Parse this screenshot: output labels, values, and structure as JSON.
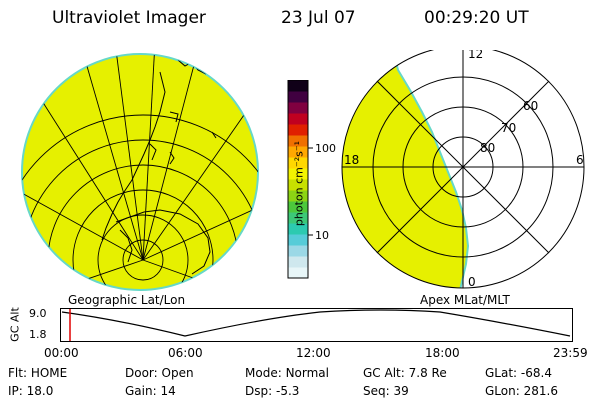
{
  "header": {
    "instrument": "Ultraviolet Imager",
    "date": "23 Jul 07",
    "time": "00:29:20 UT"
  },
  "left_panel": {
    "caption": "Geographic Lat/Lon"
  },
  "right_panel": {
    "caption": "Apex  MLat/MLT",
    "mlt_labels": {
      "top": "12",
      "left": "18",
      "right": "6",
      "bottom": "0"
    },
    "lat_labels": [
      "60",
      "70",
      "80"
    ]
  },
  "colorbar": {
    "unit_label": "photon cm⁻²s⁻¹",
    "ticks": [
      "100",
      "10"
    ],
    "colors": [
      "#e8f6f8",
      "#cfe8ee",
      "#9bd8e6",
      "#56ccd8",
      "#2ccab0",
      "#3cc878",
      "#4cc83c",
      "#8cd414",
      "#c8e000",
      "#f4f400",
      "#ffd800",
      "#ffa800",
      "#f07000",
      "#e02000",
      "#c00020",
      "#800040",
      "#400040",
      "#100018"
    ]
  },
  "altitude_plot": {
    "ylabel": "GC Alt",
    "yticks": [
      "9.0",
      "1.8"
    ],
    "xticks": [
      "00:00",
      "06:00",
      "12:00",
      "18:00",
      "23:59"
    ]
  },
  "info": {
    "row1": [
      {
        "k": "Flt:",
        "v": "HOME"
      },
      {
        "k": "Door:",
        "v": "Open"
      },
      {
        "k": "Mode:",
        "v": "Normal"
      },
      {
        "k": "GC Alt:",
        "v": "7.8 Re"
      },
      {
        "k": "GLat:",
        "v": "-68.4"
      }
    ],
    "row2": [
      {
        "k": "IP:",
        "v": "18.0"
      },
      {
        "k": "Gain:",
        "v": "14"
      },
      {
        "k": "Dsp:",
        "v": "-5.3"
      },
      {
        "k": "Seq:",
        "v": "39"
      },
      {
        "k": "GLon:",
        "v": "281.6"
      }
    ]
  },
  "colors": {
    "glow": "#e6f000",
    "edge": "#66d8c8"
  }
}
